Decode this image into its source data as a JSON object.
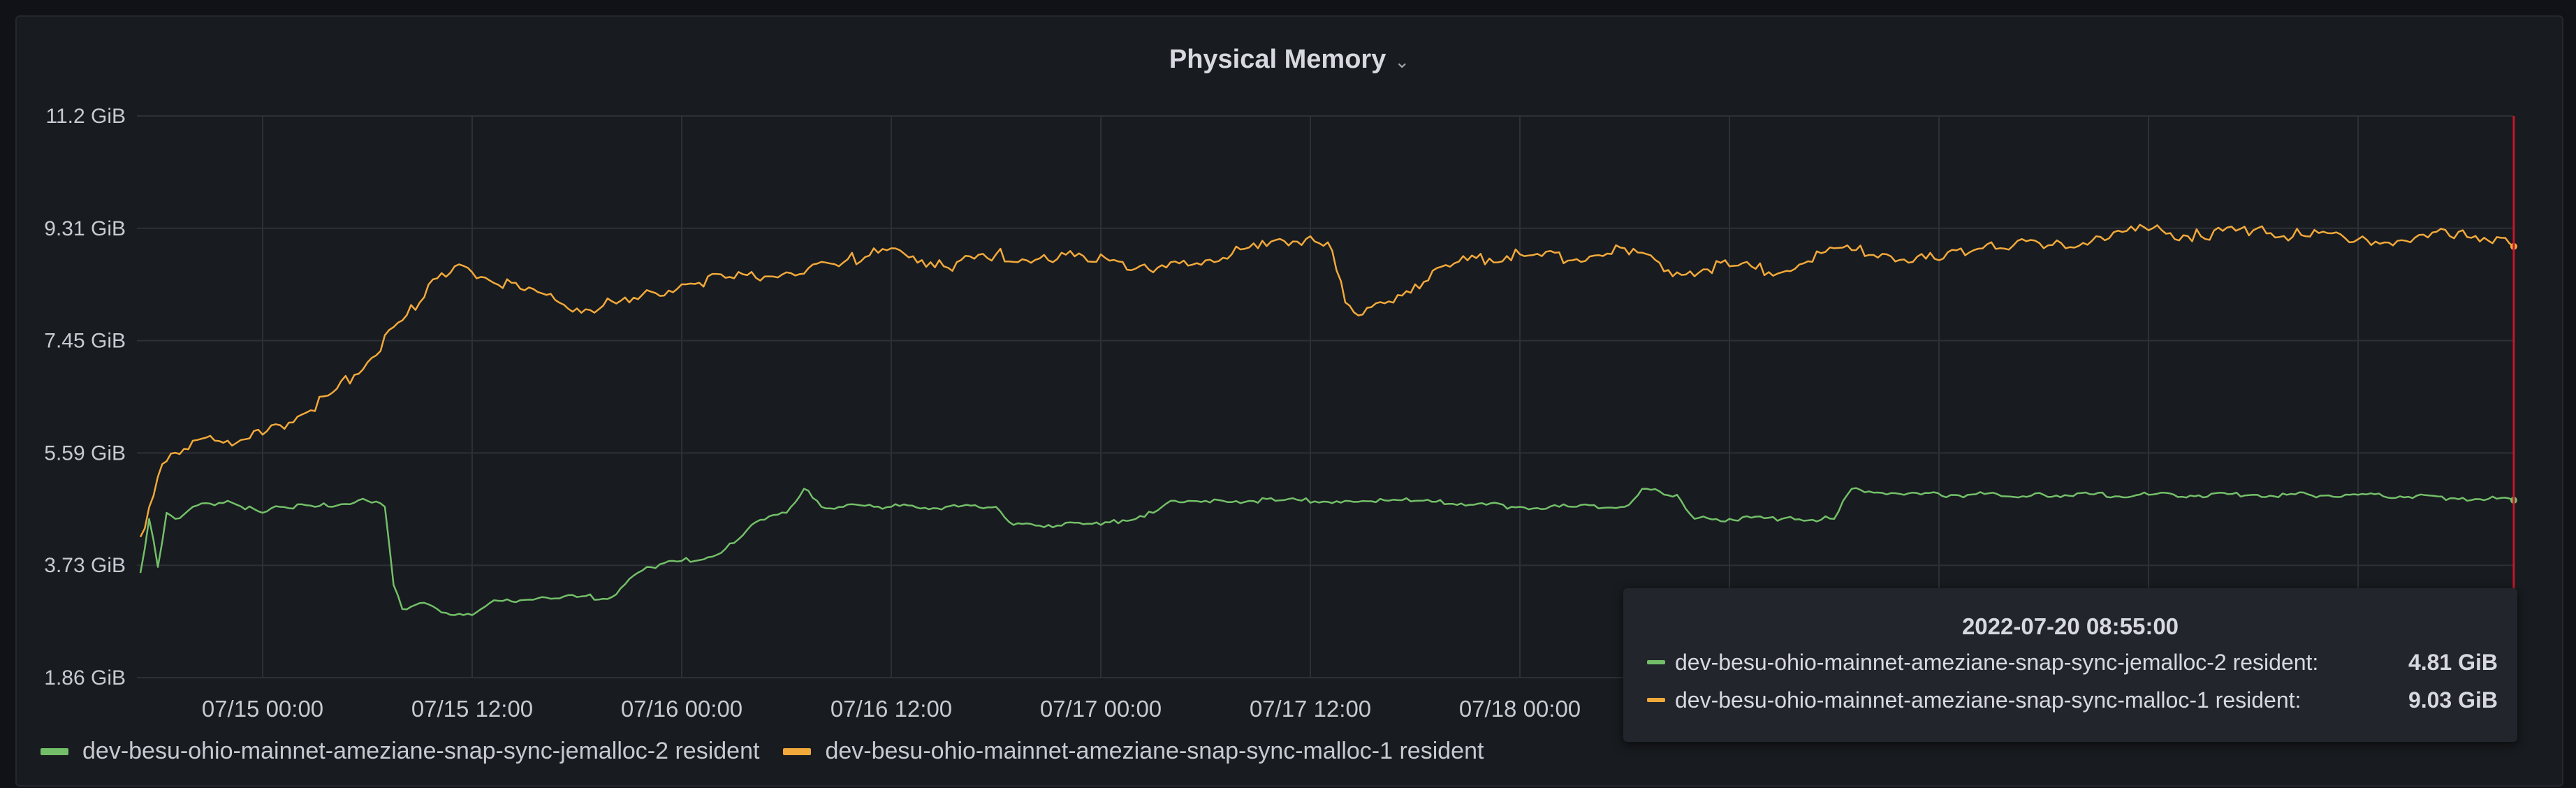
{
  "panel": {
    "title": "Physical Memory"
  },
  "tooltip": {
    "time": "2022-07-20 08:55:00",
    "rows": [
      {
        "name": "dev-besu-ohio-mainnet-ameziane-snap-sync-jemalloc-2 resident:",
        "value": "4.81 GiB"
      },
      {
        "name": "dev-besu-ohio-mainnet-ameziane-snap-sync-malloc-1 resident:",
        "value": "9.03 GiB"
      }
    ]
  },
  "colors": {
    "background": "#181b1f",
    "grid": "#2d3036",
    "green": "#73bf69",
    "orange": "#f2a93b",
    "cursor": "#c4162a"
  },
  "chart_data": {
    "type": "line",
    "title": "Physical Memory",
    "ylim": [
      1.86,
      11.2
    ],
    "y_unit": "GiB",
    "y_ticks": [
      "1.86 GiB",
      "3.73 GiB",
      "5.59 GiB",
      "7.45 GiB",
      "9.31 GiB",
      "11.2 GiB"
    ],
    "x_ticks": [
      "07/15 00:00",
      "07/15 12:00",
      "07/16 00:00",
      "07/16 12:00",
      "07/17 00:00",
      "07/17 12:00",
      "07/18 00:00"
    ],
    "grid": true,
    "legend_position": "bottom-left",
    "series": [
      {
        "name": "dev-besu-ohio-mainnet-ameziane-snap-sync-jemalloc-2 resident",
        "color": "#73bf69",
        "x": [
          "07/14 17:00",
          "07/14 17:30",
          "07/14 18:00",
          "07/14 18:30",
          "07/14 19:00",
          "07/14 20:00",
          "07/14 22:00",
          "07/15 00:00",
          "07/15 01:00",
          "07/15 03:00",
          "07/15 06:00",
          "07/15 07:00",
          "07/15 07:30",
          "07/15 08:00",
          "07/15 09:00",
          "07/15 10:00",
          "07/15 11:00",
          "07/15 12:00",
          "07/15 13:00",
          "07/15 16:00",
          "07/15 18:00",
          "07/15 20:00",
          "07/15 21:00",
          "07/15 22:00",
          "07/16 00:00",
          "07/16 02:00",
          "07/16 03:00",
          "07/16 04:00",
          "07/16 06:00",
          "07/16 07:00",
          "07/16 08:00",
          "07/16 12:00",
          "07/16 18:00",
          "07/16 19:00",
          "07/16 21:00",
          "07/17 00:00",
          "07/17 03:00",
          "07/17 04:00",
          "07/17 06:00",
          "07/17 07:00",
          "07/17 10:00",
          "07/17 14:00",
          "07/17 18:00",
          "07/18 00:00",
          "07/18 03:00",
          "07/18 06:00",
          "07/18 07:00",
          "07/18 09:00",
          "07/18 10:00",
          "07/18 12:00",
          "07/18 15:00",
          "07/18 18:00",
          "07/18 19:00",
          "07/18 22:00",
          "07/19 06:00",
          "07/19 12:00",
          "07/19 18:00",
          "07/20 00:00",
          "07/20 06:00",
          "07/20 08:55"
        ],
        "y": [
          3.6,
          4.5,
          3.7,
          4.6,
          4.5,
          4.7,
          4.8,
          4.6,
          4.7,
          4.7,
          4.8,
          4.7,
          3.4,
          3.0,
          3.1,
          3.0,
          2.9,
          2.9,
          3.1,
          3.2,
          3.2,
          3.2,
          3.5,
          3.7,
          3.8,
          3.9,
          4.1,
          4.4,
          4.6,
          5.0,
          4.7,
          4.7,
          4.7,
          4.4,
          4.4,
          4.4,
          4.6,
          4.8,
          4.8,
          4.8,
          4.8,
          4.8,
          4.8,
          4.7,
          4.7,
          4.7,
          5.0,
          4.9,
          4.5,
          4.5,
          4.5,
          4.5,
          5.0,
          4.9,
          4.9,
          4.9,
          4.9,
          4.9,
          4.85,
          4.81
        ]
      },
      {
        "name": "dev-besu-ohio-mainnet-ameziane-snap-sync-malloc-1 resident",
        "color": "#f2a93b",
        "x": [
          "07/14 17:00",
          "07/14 18:00",
          "07/14 19:00",
          "07/14 20:00",
          "07/14 22:00",
          "07/15 00:00",
          "07/15 02:00",
          "07/15 04:00",
          "07/15 06:00",
          "07/15 08:00",
          "07/15 09:00",
          "07/15 10:00",
          "07/15 11:00",
          "07/15 12:00",
          "07/15 15:00",
          "07/15 18:00",
          "07/15 21:00",
          "07/16 00:00",
          "07/16 03:00",
          "07/16 06:00",
          "07/16 09:00",
          "07/16 11:00",
          "07/16 12:00",
          "07/16 15:00",
          "07/16 18:00",
          "07/16 21:00",
          "07/17 00:00",
          "07/17 03:00",
          "07/17 06:00",
          "07/17 09:00",
          "07/17 12:00",
          "07/17 13:00",
          "07/17 14:00",
          "07/17 15:00",
          "07/17 18:00",
          "07/17 21:00",
          "07/18 00:00",
          "07/18 03:00",
          "07/18 06:00",
          "07/18 09:00",
          "07/18 12:00",
          "07/18 15:00",
          "07/18 18:00",
          "07/18 21:00",
          "07/19 00:00",
          "07/19 03:00",
          "07/19 06:00",
          "07/19 09:00",
          "07/19 12:00",
          "07/19 15:00",
          "07/19 18:00",
          "07/19 21:00",
          "07/20 00:00",
          "07/20 03:00",
          "07/20 06:00",
          "07/20 08:55"
        ],
        "y": [
          4.2,
          5.2,
          5.6,
          5.8,
          5.8,
          5.9,
          6.2,
          6.6,
          7.1,
          7.8,
          8.1,
          8.5,
          8.7,
          8.6,
          8.3,
          8.0,
          8.1,
          8.4,
          8.5,
          8.6,
          8.7,
          9.0,
          9.0,
          8.7,
          8.9,
          8.8,
          8.9,
          8.6,
          8.8,
          9.0,
          9.2,
          9.1,
          8.1,
          7.9,
          8.4,
          8.8,
          8.9,
          8.8,
          9.0,
          8.6,
          8.7,
          8.6,
          9.0,
          8.9,
          8.8,
          9.1,
          9.0,
          9.2,
          9.3,
          9.2,
          9.3,
          9.2,
          9.15,
          9.1,
          9.3,
          9.03
        ]
      }
    ]
  }
}
